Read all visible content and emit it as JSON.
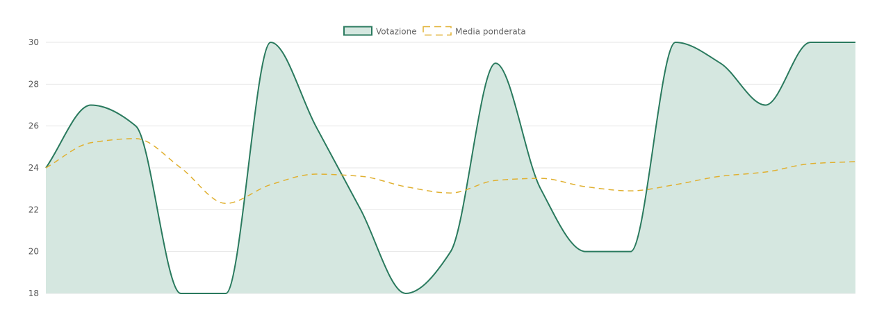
{
  "chart_data": {
    "type": "area",
    "title": "",
    "xlabel": "",
    "ylabel": "",
    "ylim": [
      18,
      30
    ],
    "y_ticks": [
      18,
      20,
      22,
      24,
      26,
      28,
      30
    ],
    "grid": true,
    "legend_position": "top-center",
    "x": [
      1,
      2,
      3,
      4,
      5,
      6,
      7,
      8,
      9,
      10,
      11,
      12,
      13,
      14,
      15,
      16,
      17,
      18,
      19
    ],
    "series": [
      {
        "name": "Votazione",
        "kind": "area",
        "color": "#2a7a5e",
        "fill": "#d5e7e0",
        "values": [
          24,
          27,
          26,
          18,
          18,
          30,
          26,
          22,
          18,
          20,
          29,
          23,
          20,
          20,
          30,
          29,
          27,
          30,
          30
        ]
      },
      {
        "name": "Media ponderata",
        "kind": "line",
        "style": "dashed",
        "color": "#e0b030",
        "values": [
          24,
          25.2,
          25.4,
          24,
          22.3,
          23.2,
          23.7,
          23.6,
          23.1,
          22.8,
          23.4,
          23.5,
          23.1,
          22.9,
          23.2,
          23.6,
          23.8,
          24.2,
          24.3
        ]
      }
    ]
  }
}
